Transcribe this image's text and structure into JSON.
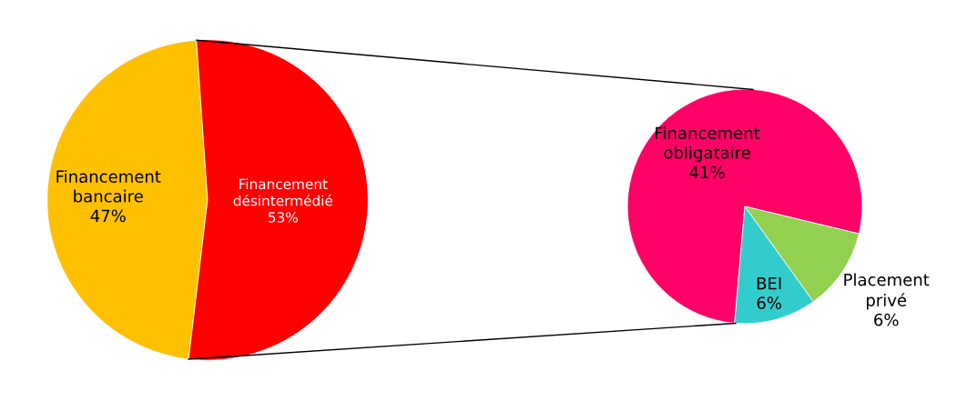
{
  "chart_data": [
    {
      "type": "pie",
      "categories": [
        "Financement bancaire",
        "Financement désintermédié"
      ],
      "values": [
        47,
        53
      ],
      "colors": [
        "#ffc000",
        "#ff0000"
      ],
      "value_labels": [
        "47%",
        "53%"
      ]
    },
    {
      "type": "pie",
      "categories": [
        "Financement obligataire",
        "BEI",
        "Placement privé"
      ],
      "values": [
        41,
        6,
        6
      ],
      "colors": [
        "#ff0066",
        "#33cccc",
        "#92d050"
      ],
      "value_labels": [
        "41%",
        "6%",
        "6%"
      ]
    }
  ]
}
